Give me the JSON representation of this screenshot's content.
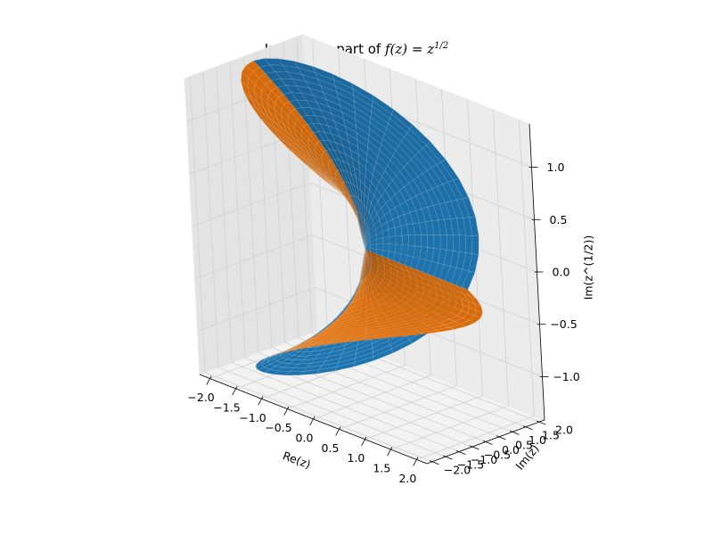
{
  "chart_data": {
    "type": "surface3d",
    "title": {
      "prefix": "Imaginary part of ",
      "fz": "f",
      "fz_arg": "(z)",
      "eq": " = ",
      "base": "z",
      "exponent": "1/2"
    },
    "xlabel": "Re(z)",
    "ylabel": "Im(z)",
    "zlabel": "Im(z^(1/2))",
    "xlim": [
      -2.2,
      2.2
    ],
    "ylim": [
      -2.2,
      2.2
    ],
    "zlim": [
      -1.414,
      1.414
    ],
    "xticks": [
      -2.0,
      -1.5,
      -1.0,
      -0.5,
      0.0,
      0.5,
      1.0,
      1.5,
      2.0
    ],
    "yticks": [
      -2.0,
      -1.5,
      -1.0,
      -0.5,
      0.0,
      0.5,
      1.0,
      1.5,
      2.0
    ],
    "zticks": [
      -1.0,
      -0.5,
      0.0,
      0.5,
      1.0
    ],
    "grid": true,
    "series": [
      {
        "branch": "principal",
        "color": "#1f77b4",
        "r_range": [
          0,
          2
        ],
        "theta_range": [
          -3.14159,
          3.14159
        ],
        "z_formula": "sqrt(r) * sin(theta / 2)"
      },
      {
        "branch": "negative",
        "color": "#ff7f0e",
        "r_range": [
          0,
          2
        ],
        "theta_range": [
          -3.14159,
          3.14159
        ],
        "z_formula": "-sqrt(r) * sin(theta / 2)"
      }
    ]
  }
}
